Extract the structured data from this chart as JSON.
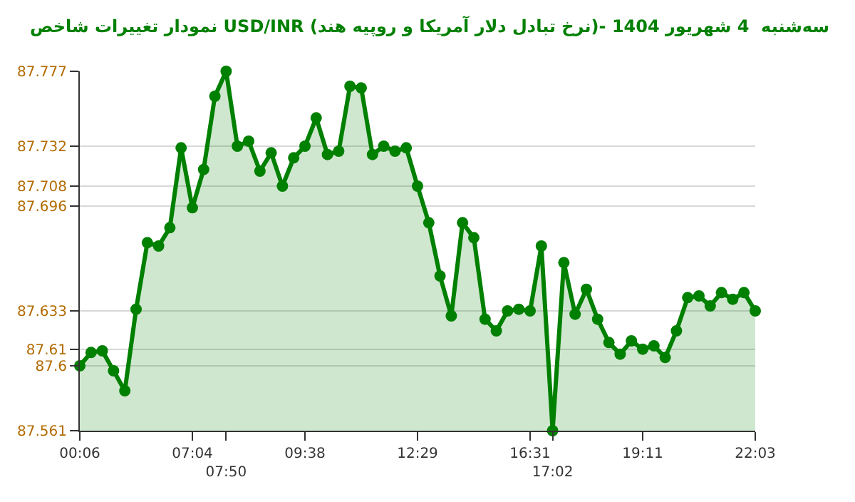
{
  "chart_data": {
    "type": "area",
    "title": "نمودار تغییرات شاخص USD/INR (نرخ تبادل دلار آمریکا و روپیه هند)- سه‌شنبه  4 شهریور 1404",
    "categories": [
      "00:06",
      null,
      null,
      null,
      null,
      null,
      null,
      null,
      null,
      null,
      "07:04",
      null,
      null,
      "07:50",
      null,
      null,
      null,
      null,
      null,
      null,
      "09:38",
      null,
      null,
      null,
      null,
      null,
      null,
      null,
      null,
      null,
      "12:29",
      null,
      null,
      null,
      null,
      null,
      null,
      null,
      null,
      null,
      "16:31",
      null,
      "17:02",
      null,
      null,
      null,
      null,
      null,
      null,
      null,
      "19:11",
      null,
      null,
      null,
      null,
      null,
      null,
      null,
      null,
      null,
      "22:03"
    ],
    "series": [
      {
        "color": "#008000",
        "values": [
          87.6,
          87.608,
          87.609,
          87.597,
          87.585,
          87.634,
          87.674,
          87.672,
          87.683,
          87.731,
          87.695,
          87.718,
          87.762,
          87.777,
          87.732,
          87.735,
          87.717,
          87.728,
          87.708,
          87.725,
          87.732,
          87.749,
          87.727,
          87.729,
          87.768,
          87.767,
          87.727,
          87.732,
          87.729,
          87.731,
          87.708,
          87.686,
          87.654,
          87.63,
          87.686,
          87.677,
          87.628,
          87.621,
          87.633,
          87.634,
          87.633,
          87.672,
          87.561,
          87.662,
          87.631,
          87.646,
          87.628,
          87.614,
          87.607,
          87.615,
          87.61,
          87.612,
          87.605,
          87.621,
          87.641,
          87.642,
          87.636,
          87.644,
          87.64,
          87.644,
          87.633
        ]
      }
    ],
    "ylim": [
      87.561,
      87.777
    ],
    "yticks": [
      87.561,
      87.6,
      87.61,
      87.633,
      87.696,
      87.708,
      87.732,
      87.777
    ],
    "grid": "y",
    "marker": "circle",
    "line_style": "solid",
    "legend": false
  }
}
